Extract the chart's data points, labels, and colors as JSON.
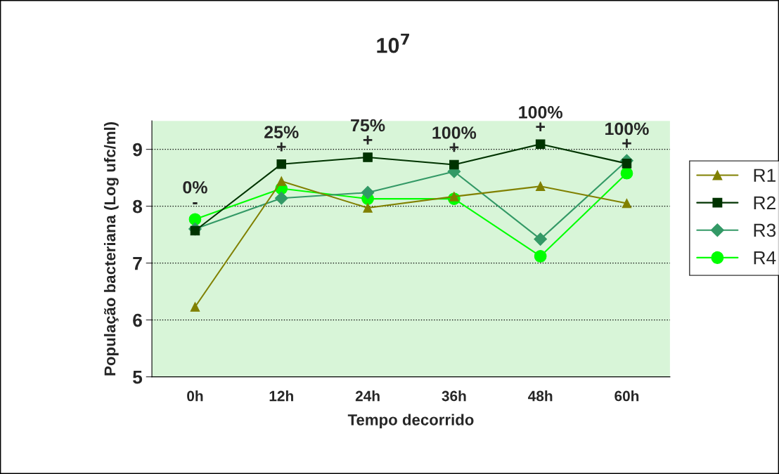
{
  "chart_data": {
    "type": "line",
    "title": "10$^{7}$",
    "xlabel": "Tempo decorrido",
    "ylabel": "População bacteriana (Log ufc/ml)",
    "categories": [
      "0h",
      "12h",
      "24h",
      "36h",
      "48h",
      "60h"
    ],
    "ylim": [
      5,
      9.5
    ],
    "yticks": [
      5,
      6,
      7,
      8,
      9
    ],
    "grid": "y",
    "legend": "right",
    "line_style": "solid",
    "series": [
      {
        "name": "R1",
        "color": "#808000",
        "marker": "triangle",
        "values": [
          6.23,
          8.44,
          7.97,
          8.17,
          8.35,
          8.05
        ]
      },
      {
        "name": "R2",
        "color": "#003300",
        "marker": "square",
        "values": [
          7.57,
          8.74,
          8.86,
          8.73,
          9.09,
          8.75
        ]
      },
      {
        "name": "R3",
        "color": "#339966",
        "marker": "diamond",
        "values": [
          7.6,
          8.14,
          8.24,
          8.61,
          7.42,
          8.8
        ]
      },
      {
        "name": "R4",
        "color": "#00ff00",
        "marker": "circle",
        "values": [
          7.77,
          8.31,
          8.13,
          8.13,
          7.12,
          8.58
        ]
      }
    ],
    "annotations": [
      "0%\n-",
      "25%\n+",
      "75%\n+",
      "100%\n+",
      "100%\n+",
      "100%\n+"
    ]
  }
}
